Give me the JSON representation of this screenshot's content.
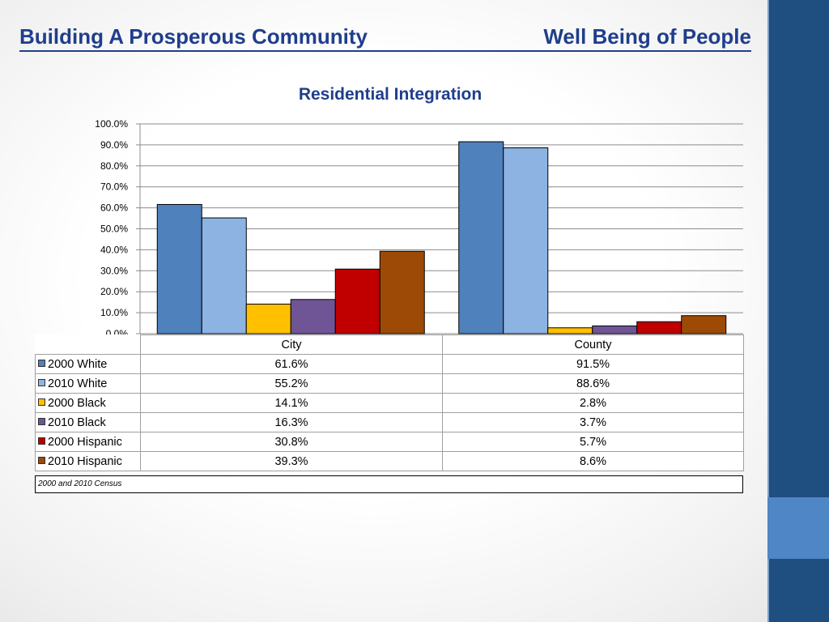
{
  "header": {
    "left_title": "Building A Prosperous Community",
    "right_title": "Well Being of People"
  },
  "chart_data": {
    "type": "bar",
    "title": "Residential Integration",
    "categories": [
      "City",
      "County"
    ],
    "series": [
      {
        "name": "2000 White",
        "values": [
          61.6,
          91.5
        ],
        "labels": [
          "61.6%",
          "91.5%"
        ],
        "color": "#4f81bd"
      },
      {
        "name": "2010 White",
        "values": [
          55.2,
          88.6
        ],
        "labels": [
          "55.2%",
          "88.6%"
        ],
        "color": "#8db3e2"
      },
      {
        "name": "2000 Black",
        "values": [
          14.1,
          2.8
        ],
        "labels": [
          "14.1%",
          "2.8%"
        ],
        "color": "#ffc000"
      },
      {
        "name": "2010 Black",
        "values": [
          16.3,
          3.7
        ],
        "labels": [
          "16.3%",
          "3.7%"
        ],
        "color": "#6f5596"
      },
      {
        "name": "2000 Hispanic",
        "values": [
          30.8,
          5.7
        ],
        "labels": [
          "30.8%",
          "5.7%"
        ],
        "color": "#c00000"
      },
      {
        "name": "2010 Hispanic",
        "values": [
          39.3,
          8.6
        ],
        "labels": [
          "39.3%",
          "8.6%"
        ],
        "color": "#9c4a06"
      }
    ],
    "ylim": [
      0,
      100
    ],
    "yticks": [
      "0.0%",
      "10.0%",
      "20.0%",
      "30.0%",
      "40.0%",
      "50.0%",
      "60.0%",
      "70.0%",
      "80.0%",
      "90.0%",
      "100.0%"
    ],
    "grid": true,
    "legend": "data table",
    "footnote": "2000 and 2010 Census"
  }
}
